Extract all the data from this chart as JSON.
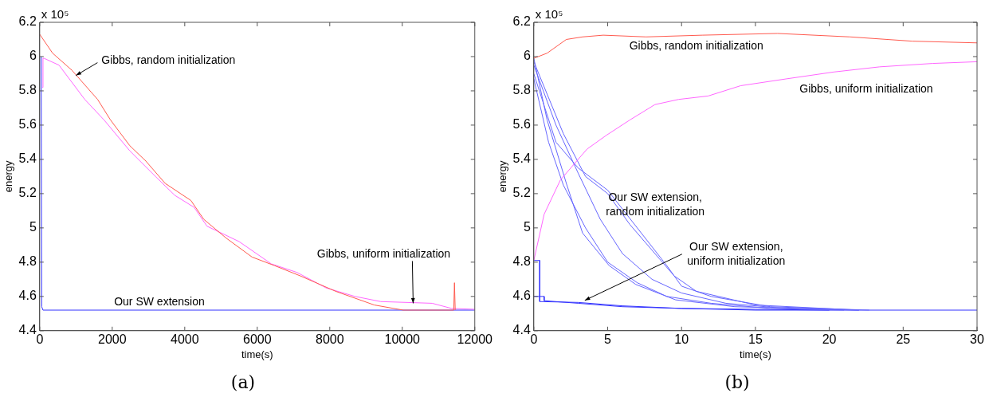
{
  "chart_data": [
    {
      "type": "line",
      "title": "(a)",
      "xlabel": "time(s)",
      "ylabel": "energy",
      "xlim": [
        0,
        12000
      ],
      "xticks": [
        0,
        2000,
        4000,
        6000,
        8000,
        10000,
        12000
      ],
      "ylim": [
        4.4,
        6.2
      ],
      "yticks": [
        4.4,
        4.6,
        4.8,
        5,
        5.2,
        5.4,
        5.6,
        5.8,
        6,
        6.2
      ],
      "annotations": [
        "x 10⁵",
        {
          "text": "Gibbs, random initialization",
          "x": 1000,
          "y": 5.89
        },
        {
          "text": "Gibbs, uniform initialization",
          "x": 10300,
          "y": 4.56
        },
        {
          "text": "Our SW extension",
          "x": 3300,
          "y": 4.52
        }
      ],
      "series": [
        {
          "color": "#ff5a4f",
          "x": [
            0,
            355,
            888,
            1597,
            1952,
            2484,
            2928,
            3460,
            4170,
            4525,
            5146,
            5856,
            6477,
            7187,
            8163,
            9228,
            10027,
            11420,
            11440,
            11447,
            11460
          ],
          "values": [
            6.13,
            6.02,
            5.92,
            5.75,
            5.63,
            5.48,
            5.39,
            5.26,
            5.16,
            5.05,
            4.94,
            4.83,
            4.78,
            4.72,
            4.63,
            4.55,
            4.52,
            4.52,
            4.68,
            4.68,
            4.52
          ]
        },
        {
          "color": "#ff66ff",
          "x": [
            70,
            90,
            120,
            532,
            1242,
            1775,
            2484,
            3194,
            3727,
            4259,
            4614,
            5501,
            6388,
            7098,
            7896,
            8695,
            9405,
            10825,
            11358,
            12000
          ],
          "values": [
            5.82,
            5.99,
            5.99,
            5.95,
            5.75,
            5.63,
            5.45,
            5.3,
            5.19,
            5.12,
            5.01,
            4.92,
            4.79,
            4.74,
            4.65,
            4.6,
            4.57,
            4.56,
            4.53,
            4.525
          ]
        },
        {
          "color": "#3333ff",
          "x": [
            40,
            55,
            90,
            12000
          ],
          "values": [
            6,
            4.54,
            4.52,
            4.52
          ]
        }
      ]
    },
    {
      "type": "line",
      "title": "(b)",
      "xlabel": "time(s)",
      "ylabel": "energy",
      "xlim": [
        0,
        30
      ],
      "xticks": [
        0,
        5,
        10,
        15,
        20,
        25,
        30
      ],
      "ylim": [
        4.4,
        6.2
      ],
      "yticks": [
        4.4,
        4.6,
        4.8,
        5,
        5.2,
        5.4,
        5.6,
        5.8,
        6,
        6.2
      ],
      "annotations": [
        "x 10⁵",
        {
          "text": "Gibbs, random initialization",
          "x": 11,
          "y": 6.12
        },
        {
          "text": "Gibbs, uniform initialization",
          "x": 22.5,
          "y": 5.92
        },
        "Our SW extension,\nrandom initialization",
        {
          "text": "Our SW extension,\nuniform initialization",
          "x": 3.45,
          "y": 4.577
        }
      ],
      "series": [
        {
          "color": "#ff5a4f",
          "x": [
            0,
            0.9,
            2.2,
            3.3,
            4.7,
            7.6,
            11.4,
            16.5,
            21.4,
            25.6,
            30
          ],
          "values": [
            5.99,
            6.02,
            6.1,
            6.115,
            6.125,
            6.115,
            6.125,
            6.135,
            6.115,
            6.09,
            6.08
          ]
        },
        {
          "color": "#ff66ff",
          "x": [
            0,
            0.7,
            1.8,
            3.6,
            4.9,
            6.5,
            8.2,
            9.8,
            11.8,
            14,
            17.1,
            20.3,
            23.4,
            27,
            30
          ],
          "values": [
            4.81,
            5.08,
            5.28,
            5.46,
            5.54,
            5.63,
            5.72,
            5.75,
            5.77,
            5.83,
            5.87,
            5.91,
            5.94,
            5.96,
            5.97
          ]
        },
        {
          "color": "#6666ff",
          "x": [
            0,
            0.9,
            2.2,
            3.3,
            5.1,
            6.9,
            9.6,
            13.6,
            18,
            22
          ],
          "values": [
            5.99,
            5.63,
            5.26,
            4.97,
            4.78,
            4.67,
            4.58,
            4.54,
            4.53,
            4.52
          ]
        },
        {
          "color": "#6666ff",
          "x": [
            0,
            1.5,
            3,
            4.5,
            6,
            8,
            10,
            13,
            17,
            22
          ],
          "values": [
            5.95,
            5.6,
            5.32,
            5.05,
            4.85,
            4.7,
            4.62,
            4.56,
            4.53,
            4.52
          ]
        },
        {
          "color": "#6666ff",
          "x": [
            0,
            2,
            3.5,
            5,
            6.5,
            8.5,
            9.5,
            11,
            15,
            22
          ],
          "values": [
            5.97,
            5.55,
            5.3,
            5.2,
            5.02,
            4.82,
            4.72,
            4.63,
            4.55,
            4.52
          ]
        },
        {
          "color": "#6666ff",
          "x": [
            0,
            1.5,
            3,
            5,
            7,
            9,
            10,
            12,
            16,
            22.7
          ],
          "values": [
            5.9,
            5.5,
            5.35,
            5.22,
            5,
            4.78,
            4.66,
            4.6,
            4.54,
            4.52
          ]
        },
        {
          "color": "#6666ff",
          "x": [
            0,
            1,
            2,
            3.5,
            5,
            7,
            9,
            12,
            16,
            21
          ],
          "values": [
            5.87,
            5.5,
            5.25,
            5,
            4.8,
            4.68,
            4.6,
            4.56,
            4.53,
            4.52
          ]
        },
        {
          "color": "#3333ff",
          "x": [
            0,
            0.4,
            0.4,
            3,
            6,
            10,
            15,
            30
          ],
          "values": [
            4.81,
            4.81,
            4.57,
            4.565,
            4.545,
            4.53,
            4.52,
            4.52
          ]
        },
        {
          "color": "#3333ff",
          "x": [
            0,
            0.7,
            0.7,
            3,
            6,
            10,
            15,
            20
          ],
          "values": [
            4.6,
            4.6,
            4.575,
            4.56,
            4.54,
            4.53,
            4.525,
            4.52
          ]
        }
      ]
    }
  ]
}
